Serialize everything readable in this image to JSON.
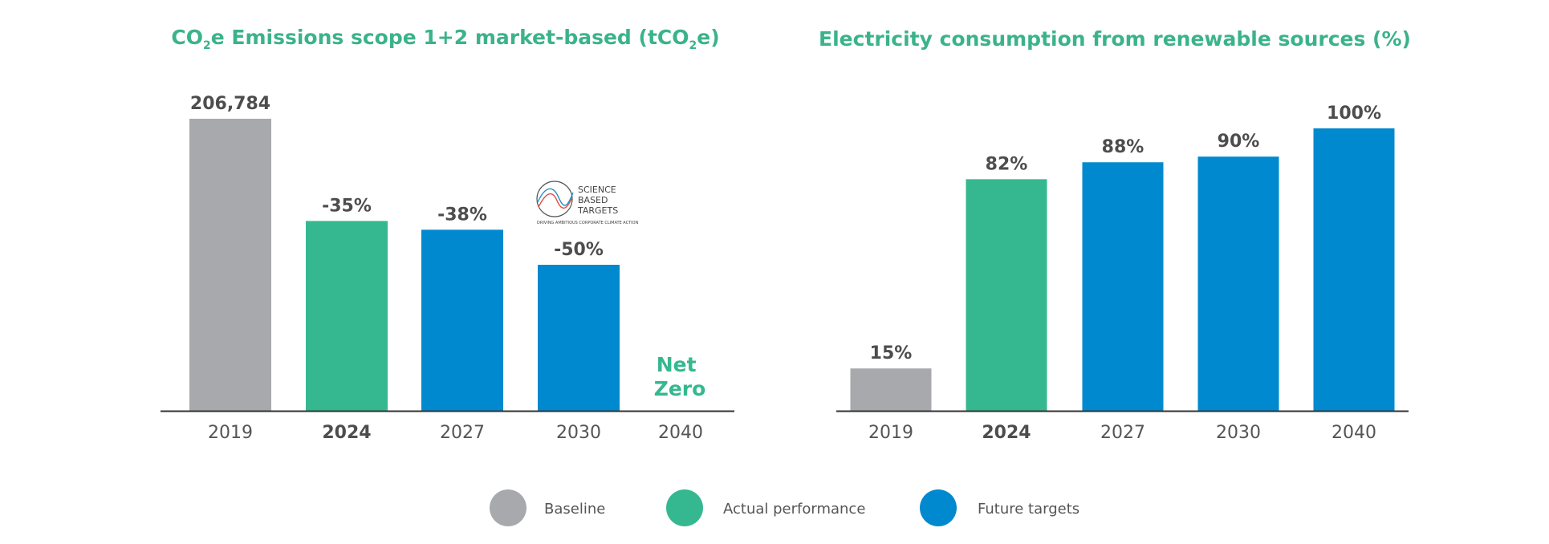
{
  "colors": {
    "baseline": "#a7a9ac",
    "actual": "#35b88f",
    "future": "#0089cf",
    "title": "#3bb38a",
    "axis": "#333333"
  },
  "legend": [
    {
      "key": "baseline",
      "label": "Baseline"
    },
    {
      "key": "actual",
      "label": "Actual performance"
    },
    {
      "key": "future",
      "label": "Future targets"
    }
  ],
  "chart_data": [
    {
      "type": "bar",
      "title": {
        "prefix": "CO",
        "sub1": "2",
        "mid": "e Emissions scope 1+2 market-based (tCO",
        "sub2": "2",
        "suffix": "e)"
      },
      "xlabel": "",
      "ylabel": "",
      "ylim": [
        0,
        206784
      ],
      "categories": [
        "2019",
        "2024",
        "2027",
        "2030",
        "2040"
      ],
      "values": [
        206784,
        134410,
        128206,
        103392,
        0
      ],
      "value_labels": [
        "206,784",
        "-35%",
        "-38%",
        "-50%",
        ""
      ],
      "series_kind": [
        "baseline",
        "actual",
        "future",
        "future",
        "none"
      ],
      "bold_category": "2024",
      "annotations": {
        "net_zero": [
          "Net",
          "Zero"
        ],
        "logo": {
          "line1": "SCIENCE",
          "line2": "BASED",
          "line3": "TARGETS",
          "tagline": "DRIVING AMBITIOUS CORPORATE CLIMATE ACTION"
        }
      }
    },
    {
      "type": "bar",
      "title": "Electricity consumption from renewable sources (%)",
      "xlabel": "",
      "ylabel": "",
      "ylim": [
        0,
        100
      ],
      "categories": [
        "2019",
        "2024",
        "2027",
        "2030",
        "2040"
      ],
      "values": [
        15,
        82,
        88,
        90,
        100
      ],
      "value_labels": [
        "15%",
        "82%",
        "88%",
        "90%",
        "100%"
      ],
      "series_kind": [
        "baseline",
        "actual",
        "future",
        "future",
        "future"
      ],
      "bold_category": "2024"
    }
  ]
}
